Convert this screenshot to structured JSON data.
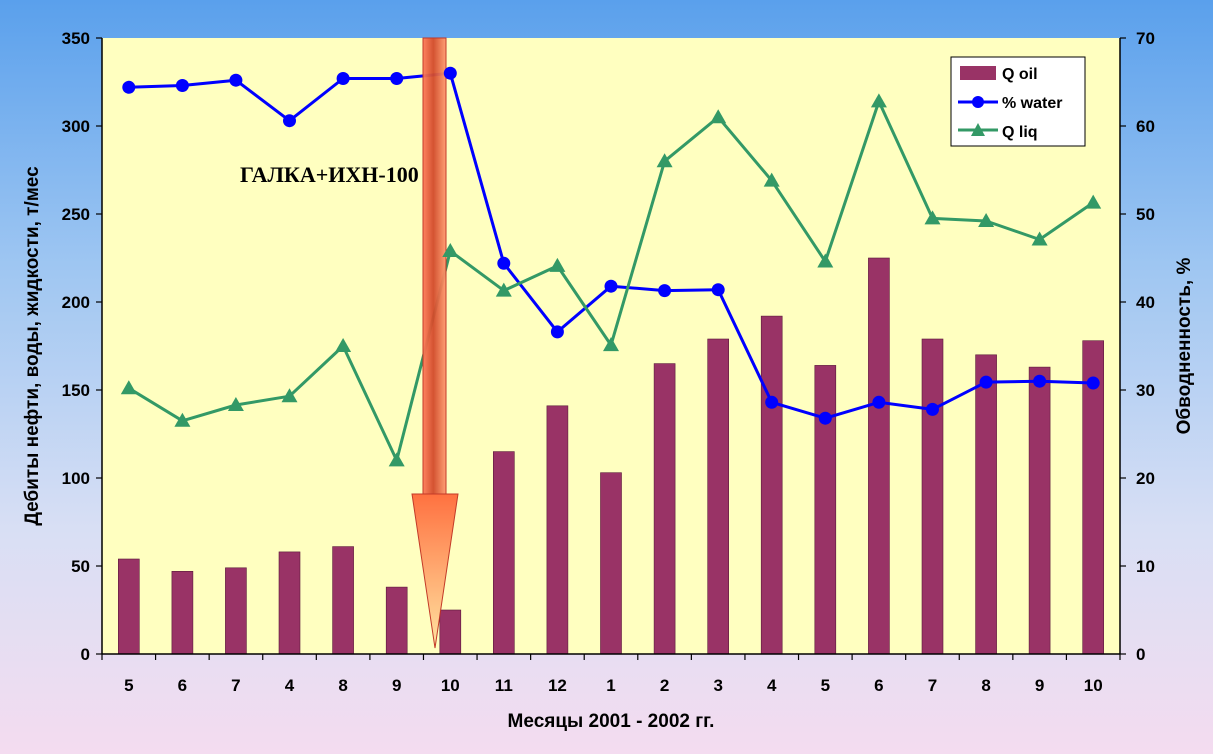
{
  "chart_data": {
    "type": "bar+line",
    "categories": [
      "5",
      "6",
      "7",
      "4",
      "8",
      "9",
      "10",
      "11",
      "12",
      "1",
      "2",
      "3",
      "4",
      "5",
      "6",
      "7",
      "8",
      "9",
      "10"
    ],
    "series": [
      {
        "name": "Q oil",
        "type": "bar",
        "axis": "left",
        "color": "#993366",
        "values": [
          54,
          47,
          49,
          58,
          61,
          38,
          25,
          115,
          141,
          103,
          165,
          179,
          192,
          164,
          225,
          179,
          170,
          163,
          178
        ]
      },
      {
        "name": "% water",
        "type": "line",
        "axis": "right",
        "color": "#0000ff",
        "marker": "circle",
        "values": [
          64.4,
          64.6,
          65.2,
          60.6,
          65.4,
          65.4,
          66.0,
          44.4,
          36.6,
          41.8,
          41.3,
          41.4,
          28.6,
          26.8,
          28.6,
          27.8,
          30.9,
          31.0,
          30.8
        ]
      },
      {
        "name": "Q liq",
        "type": "line",
        "axis": "right",
        "color": "#339966",
        "marker": "triangle",
        "values": [
          30.2,
          26.5,
          28.3,
          29.3,
          35.0,
          22.0,
          45.8,
          41.3,
          44.1,
          35.1,
          56.0,
          61.0,
          53.8,
          44.6,
          62.8,
          49.5,
          49.2,
          47.1,
          51.3
        ]
      }
    ],
    "yleft": {
      "label": "Дебиты нефти, воды, жидкости, т/мес",
      "lim": [
        0,
        350
      ],
      "ticks": [
        "0",
        "50",
        "100",
        "150",
        "200",
        "250",
        "300",
        "350"
      ]
    },
    "yright": {
      "label": "Обводненность, %",
      "lim": [
        0,
        70
      ],
      "ticks": [
        "0",
        "10",
        "20",
        "30",
        "40",
        "50",
        "60",
        "70"
      ]
    },
    "xlabel": "Месяцы 2001 - 2002 гг.",
    "annotation": {
      "text": "ГАЛКА+ИХН-100",
      "arrow_at_category_index": 6
    },
    "legend": {
      "position": "top-right"
    },
    "plot_background": "#ffffc0"
  }
}
